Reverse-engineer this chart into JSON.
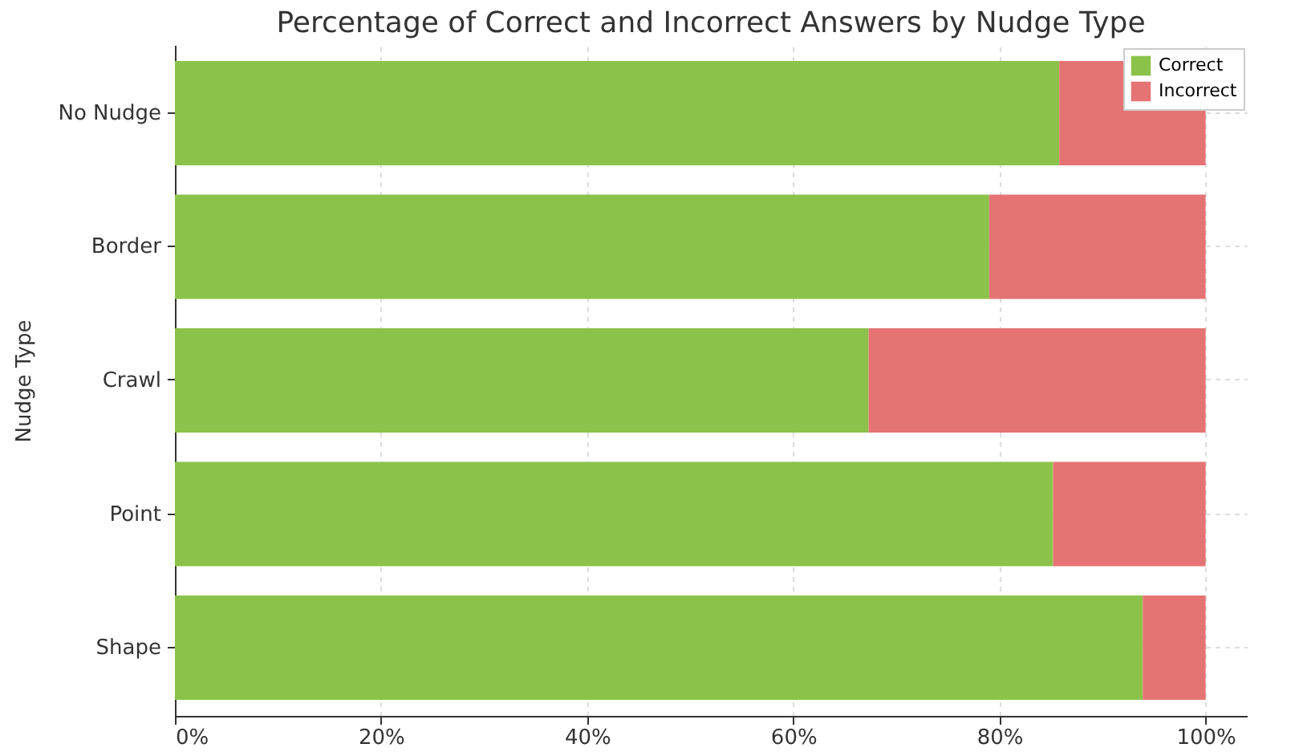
{
  "chart_data": {
    "type": "bar",
    "orientation": "horizontal",
    "stacked": true,
    "title": "Percentage of Correct and Incorrect Answers by Nudge Type",
    "ylabel": "Nudge Type",
    "categories": [
      "No Nudge",
      "Border",
      "Crawl",
      "Point",
      "Shape"
    ],
    "series": [
      {
        "name": "Correct",
        "color": "#8bc34a",
        "values": [
          85.8,
          79.0,
          67.3,
          85.2,
          93.9
        ]
      },
      {
        "name": "Incorrect",
        "color": "#e57373",
        "values": [
          14.2,
          21.0,
          32.7,
          14.8,
          6.1
        ]
      }
    ],
    "xlim": [
      0,
      104
    ],
    "xticks": [
      {
        "value": 0,
        "label": "0%"
      },
      {
        "value": 20,
        "label": "20%"
      },
      {
        "value": 40,
        "label": "40%"
      },
      {
        "value": 60,
        "label": "60%"
      },
      {
        "value": 80,
        "label": "80%"
      },
      {
        "value": 100,
        "label": "100%"
      }
    ],
    "grid": true,
    "legend": "top right"
  }
}
